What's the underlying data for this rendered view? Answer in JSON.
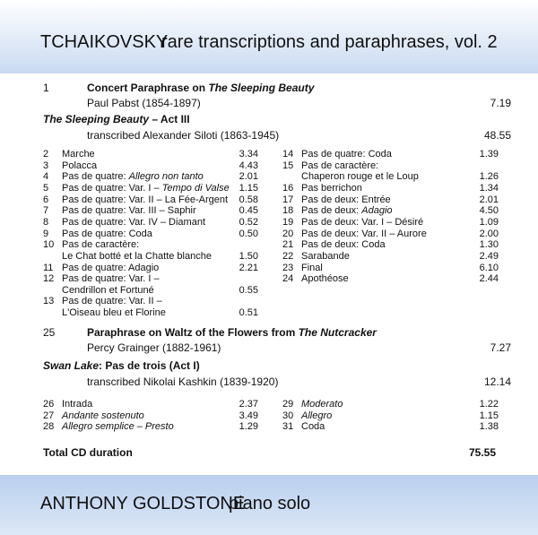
{
  "header": {
    "composer": "TCHAIKOVSKY",
    "title": "rare transcriptions and paraphrases, vol. 2"
  },
  "sections": [
    {
      "number": "1",
      "title": [
        "Concert Paraphrase on ",
        {
          "text": "The Sleeping Beauty",
          "italic": true
        }
      ],
      "subtitle": "Paul Pabst (1854-1897)",
      "duration": "7.19"
    },
    {
      "title": [
        {
          "text": "The Sleeping Beauty",
          "italic": true
        },
        " – Act III"
      ],
      "subtitle": "transcribed Alexander Siloti (1863-1945)",
      "duration": "48.55",
      "tracks": {
        "left": [
          {
            "number": "2",
            "lines": [
              [
                "Marche"
              ]
            ],
            "duration": "3.34"
          },
          {
            "number": "3",
            "lines": [
              [
                "Polacca"
              ]
            ],
            "duration": "4.43"
          },
          {
            "number": "4",
            "lines": [
              [
                "Pas de quatre: ",
                {
                  "text": "Allegro non tanto",
                  "italic": true
                }
              ]
            ],
            "duration": "2.01"
          },
          {
            "number": "5",
            "lines": [
              [
                "Pas de quatre: Var. I – ",
                {
                  "text": "Tempo di Valse",
                  "italic": true
                }
              ]
            ],
            "duration": "1.15"
          },
          {
            "number": "6",
            "lines": [
              [
                "Pas de quatre: Var. II – La Fée-Argent"
              ]
            ],
            "duration": "0.58"
          },
          {
            "number": "7",
            "lines": [
              [
                "Pas de quatre: Var. III – Saphir"
              ]
            ],
            "duration": "0.45"
          },
          {
            "number": "8",
            "lines": [
              [
                "Pas de quatre: Var. IV – Diamant"
              ]
            ],
            "duration": "0.52"
          },
          {
            "number": "9",
            "lines": [
              [
                "Pas de quatre: Coda"
              ]
            ],
            "duration": "0.50"
          },
          {
            "number": "10",
            "lines": [
              [
                "Pas de caractère:"
              ],
              [
                "Le Chat botté et la Chatte blanche"
              ]
            ],
            "duration": "1.50"
          },
          {
            "number": "11",
            "lines": [
              [
                "Pas de quatre: Adagio"
              ]
            ],
            "duration": "2.21"
          },
          {
            "number": "12",
            "lines": [
              [
                "Pas de quatre: Var. I –"
              ],
              [
                "Cendrillon et Fortuné"
              ]
            ],
            "duration": "0.55"
          },
          {
            "number": "13",
            "lines": [
              [
                "Pas de quatre: Var. II –"
              ],
              [
                "L'Oiseau bleu et Florine"
              ]
            ],
            "duration": "0.51"
          }
        ],
        "right": [
          {
            "number": "14",
            "lines": [
              [
                "Pas de quatre: Coda"
              ]
            ],
            "duration": "1.39"
          },
          {
            "number": "15",
            "lines": [
              [
                "Pas de caractère:"
              ],
              [
                "Chaperon rouge et le Loup"
              ]
            ],
            "duration": "1.26"
          },
          {
            "number": "16",
            "lines": [
              [
                "Pas berrichon"
              ]
            ],
            "duration": "1.34"
          },
          {
            "number": "17",
            "lines": [
              [
                "Pas de deux: Entrée"
              ]
            ],
            "duration": "2.01"
          },
          {
            "number": "18",
            "lines": [
              [
                "Pas de deux: ",
                {
                  "text": "Adagio",
                  "italic": true
                }
              ]
            ],
            "duration": "4.50"
          },
          {
            "number": "19",
            "lines": [
              [
                "Pas de deux: Var. I – Désiré"
              ]
            ],
            "duration": "1.09"
          },
          {
            "number": "20",
            "lines": [
              [
                "Pas de deux: Var. II – Aurore"
              ]
            ],
            "duration": "2.00"
          },
          {
            "number": "21",
            "lines": [
              [
                "Pas de deux: Coda"
              ]
            ],
            "duration": "1.30"
          },
          {
            "number": "22",
            "lines": [
              [
                "Sarabande"
              ]
            ],
            "duration": "2.49"
          },
          {
            "number": "23",
            "lines": [
              [
                "Final"
              ]
            ],
            "duration": "6.10"
          },
          {
            "number": "24",
            "lines": [
              [
                "Apothéose"
              ]
            ],
            "duration": "2.44"
          }
        ]
      }
    },
    {
      "number": "25",
      "title": [
        "Paraphrase on Waltz of the Flowers from ",
        {
          "text": "The Nutcracker",
          "italic": true
        }
      ],
      "subtitle": "Percy Grainger (1882-1961)",
      "duration": "7.27"
    },
    {
      "title": [
        {
          "text": "Swan Lake",
          "italic": true
        },
        ": Pas de trois (Act I)"
      ],
      "subtitle": "transcribed Nikolai Kashkin (1839-1920)",
      "duration": "12.14",
      "tracks": {
        "left": [
          {
            "number": "26",
            "lines": [
              [
                "Intrada"
              ]
            ],
            "duration": "2.37"
          },
          {
            "number": "27",
            "lines": [
              [
                {
                  "text": "Andante sostenuto",
                  "italic": true
                }
              ]
            ],
            "duration": "3.49"
          },
          {
            "number": "28",
            "lines": [
              [
                {
                  "text": "Allegro semplice – Presto",
                  "italic": true
                }
              ]
            ],
            "duration": "1.29"
          }
        ],
        "right": [
          {
            "number": "29",
            "lines": [
              [
                {
                  "text": "Moderato",
                  "italic": true
                }
              ]
            ],
            "duration": "1.22"
          },
          {
            "number": "30",
            "lines": [
              [
                {
                  "text": "Allegro",
                  "italic": true
                }
              ]
            ],
            "duration": "1.15"
          },
          {
            "number": "31",
            "lines": [
              [
                "Coda"
              ]
            ],
            "duration": "1.38"
          }
        ]
      }
    }
  ],
  "total": {
    "label": "Total CD duration",
    "duration": "75.55"
  },
  "footer": {
    "performer": "ANTHONY GOLDSTONE",
    "role": "piano solo"
  }
}
